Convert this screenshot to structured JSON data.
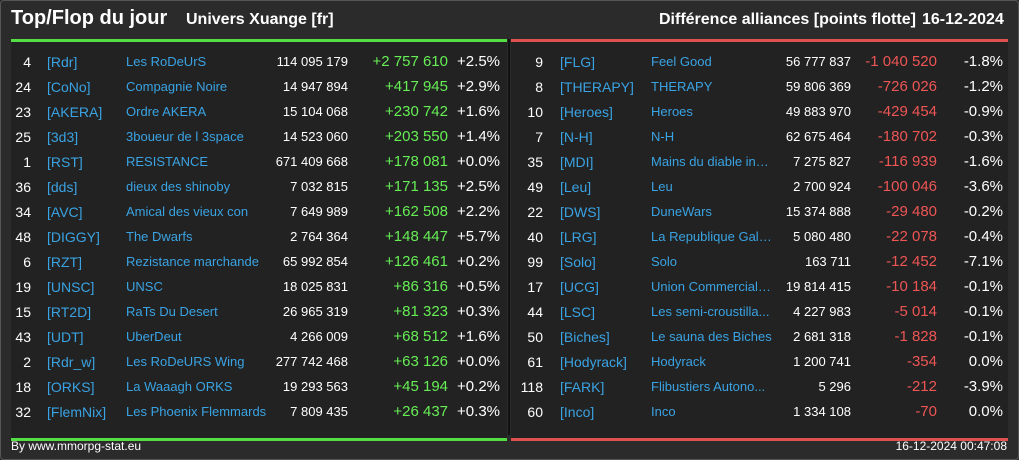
{
  "header": {
    "title": "Top/Flop du jour",
    "universe": "Univers Xuange [fr]",
    "difference": "Différence alliances [points flotte]",
    "date": "16-12-2024"
  },
  "colors": {
    "positive": "#66ee55",
    "negative": "#ee5555",
    "tag": "#3aa3e3",
    "top_bar": "#55dd44",
    "flop_bar": "#e05050"
  },
  "top": [
    {
      "rank": "4",
      "tag": "[Rdr]",
      "name": "Les RoDeUrS",
      "score": "114 095 179",
      "delta": "+2 757 610",
      "pct": "+2.5%"
    },
    {
      "rank": "24",
      "tag": "[CoNo]",
      "name": "Compagnie Noire",
      "score": "14 947 894",
      "delta": "+417 945",
      "pct": "+2.9%"
    },
    {
      "rank": "23",
      "tag": "[AKERA]",
      "name": "Ordre AKERA",
      "score": "15 104 068",
      "delta": "+230 742",
      "pct": "+1.6%"
    },
    {
      "rank": "25",
      "tag": "[3d3]",
      "name": "3boueur de l 3space",
      "score": "14 523 060",
      "delta": "+203 550",
      "pct": "+1.4%"
    },
    {
      "rank": "1",
      "tag": "[RST]",
      "name": "RESISTANCE",
      "score": "671 409 668",
      "delta": "+178 081",
      "pct": "+0.0%"
    },
    {
      "rank": "36",
      "tag": "[dds]",
      "name": "dieux des shinoby",
      "score": "7 032 815",
      "delta": "+171 135",
      "pct": "+2.5%"
    },
    {
      "rank": "34",
      "tag": "[AVC]",
      "name": "Amical des vieux con",
      "score": "7 649 989",
      "delta": "+162 508",
      "pct": "+2.2%"
    },
    {
      "rank": "48",
      "tag": "[DIGGY]",
      "name": "The Dwarfs",
      "score": "2 764 364",
      "delta": "+148 447",
      "pct": "+5.7%"
    },
    {
      "rank": "6",
      "tag": "[RZT]",
      "name": "Rezistance marchande",
      "score": "65 992 854",
      "delta": "+126 461",
      "pct": "+0.2%"
    },
    {
      "rank": "19",
      "tag": "[UNSC]",
      "name": "UNSC",
      "score": "18 025 831",
      "delta": "+86 316",
      "pct": "+0.5%"
    },
    {
      "rank": "15",
      "tag": "[RT2D]",
      "name": "RaTs Du Desert",
      "score": "26 965 319",
      "delta": "+81 323",
      "pct": "+0.3%"
    },
    {
      "rank": "43",
      "tag": "[UDT]",
      "name": "UberDeut",
      "score": "4 266 009",
      "delta": "+68 512",
      "pct": "+1.6%"
    },
    {
      "rank": "2",
      "tag": "[Rdr_w]",
      "name": "Les RoDeURS Wing",
      "score": "277 742 468",
      "delta": "+63 126",
      "pct": "+0.0%"
    },
    {
      "rank": "18",
      "tag": "[ORKS]",
      "name": "La Waaagh ORKS",
      "score": "19 293 563",
      "delta": "+45 194",
      "pct": "+0.2%"
    },
    {
      "rank": "32",
      "tag": "[FlemNix]",
      "name": "Les Phoenix Flemmards",
      "score": "7 809 435",
      "delta": "+26 437",
      "pct": "+0.3%"
    }
  ],
  "flop": [
    {
      "rank": "9",
      "tag": "[FLG]",
      "name": "Feel Good",
      "score": "56 777 837",
      "delta": "-1 040 520",
      "pct": "-1.8%"
    },
    {
      "rank": "8",
      "tag": "[THERAPY]",
      "name": "THERAPY",
      "score": "59 806 369",
      "delta": "-726 026",
      "pct": "-1.2%"
    },
    {
      "rank": "10",
      "tag": "[Heroes]",
      "name": "Heroes",
      "score": "49 883 970",
      "delta": "-429 454",
      "pct": "-0.9%"
    },
    {
      "rank": "7",
      "tag": "[N-H]",
      "name": "N-H",
      "score": "62 675 464",
      "delta": "-180 702",
      "pct": "-0.3%"
    },
    {
      "rank": "35",
      "tag": "[MDI]",
      "name": "Mains du diable inco...",
      "score": "7 275 827",
      "delta": "-116 939",
      "pct": "-1.6%"
    },
    {
      "rank": "49",
      "tag": "[Leu]",
      "name": "Leu",
      "score": "2 700 924",
      "delta": "-100 046",
      "pct": "-3.6%"
    },
    {
      "rank": "22",
      "tag": "[DWS]",
      "name": "DuneWars",
      "score": "15 374 888",
      "delta": "-29 480",
      "pct": "-0.2%"
    },
    {
      "rank": "40",
      "tag": "[LRG]",
      "name": "La Republique Gala...",
      "score": "5 080 480",
      "delta": "-22 078",
      "pct": "-0.4%"
    },
    {
      "rank": "99",
      "tag": "[Solo]",
      "name": "Solo",
      "score": "163 711",
      "delta": "-12 452",
      "pct": "-7.1%"
    },
    {
      "rank": "17",
      "tag": "[UCG]",
      "name": "Union Commerciale...",
      "score": "19 814 415",
      "delta": "-10 184",
      "pct": "-0.1%"
    },
    {
      "rank": "44",
      "tag": "[LSC]",
      "name": "Les semi-croustilla...",
      "score": "4 227 983",
      "delta": "-5 014",
      "pct": "-0.1%"
    },
    {
      "rank": "50",
      "tag": "[Biches]",
      "name": "Le sauna des Biches",
      "score": "2 681 318",
      "delta": "-1 828",
      "pct": "-0.1%"
    },
    {
      "rank": "61",
      "tag": "[Hodyrack]",
      "name": "Hodyrack",
      "score": "1 200 741",
      "delta": "-354",
      "pct": "0.0%"
    },
    {
      "rank": "118",
      "tag": "[FARK]",
      "name": "Flibustiers Autono...",
      "score": "5 296",
      "delta": "-212",
      "pct": "-3.9%"
    },
    {
      "rank": "60",
      "tag": "[Inco]",
      "name": "Inco",
      "score": "1 334 108",
      "delta": "-70",
      "pct": "0.0%"
    }
  ],
  "footer": {
    "source": "By www.mmorpg-stat.eu",
    "timestamp": "16-12-2024 00:47:08"
  }
}
